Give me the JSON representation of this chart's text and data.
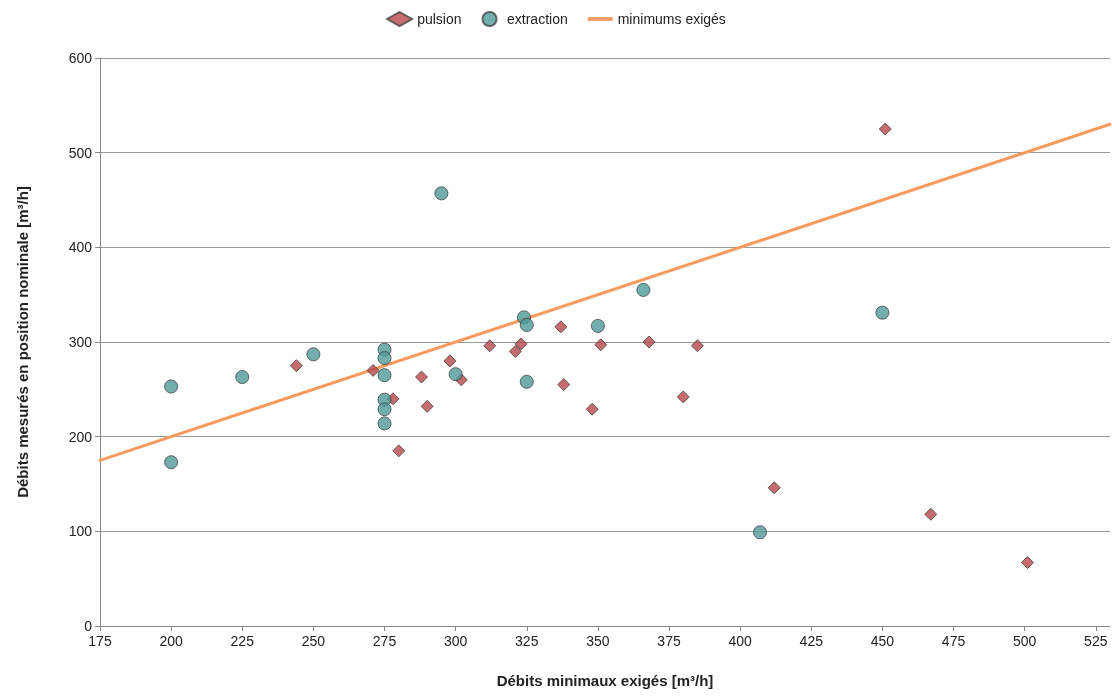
{
  "chart_data": {
    "type": "scatter",
    "xlabel": "Débits minimaux exigés [m³/h]",
    "ylabel": "Débits mesurés en position nominale [m³/h]",
    "xlim": [
      175,
      530
    ],
    "xticks": [
      175,
      200,
      225,
      250,
      275,
      300,
      325,
      350,
      375,
      400,
      425,
      450,
      475,
      500,
      525
    ],
    "ylim": [
      0,
      600
    ],
    "yticks": [
      0,
      100,
      200,
      300,
      400,
      500,
      600
    ],
    "grid": "y",
    "legend": "top",
    "series": [
      {
        "name": "pulsion",
        "color": "#b8474a",
        "marker": "diamond",
        "x": [
          244,
          271,
          278,
          280,
          288,
          290,
          298,
          302,
          312,
          321,
          323,
          337,
          338,
          348,
          351,
          368,
          380,
          385,
          412,
          451,
          467,
          501
        ],
        "values": [
          275,
          270,
          240,
          185,
          263,
          232,
          280,
          260,
          296,
          290,
          298,
          316,
          255,
          229,
          297,
          300,
          242,
          296,
          146,
          525,
          118,
          67
        ]
      },
      {
        "name": "extraction",
        "color": "#4f9a9a",
        "marker": "circle",
        "x": [
          200,
          200,
          225,
          250,
          275,
          275,
          275,
          275,
          275,
          275,
          295,
          300,
          324,
          325,
          325,
          350,
          366,
          407,
          450
        ],
        "values": [
          253,
          173,
          263,
          287,
          292,
          283,
          265,
          239,
          229,
          214,
          457,
          266,
          326,
          318,
          258,
          317,
          355,
          99,
          331
        ]
      },
      {
        "name": "minimums exigés",
        "type": "line",
        "color": "#f79a5e",
        "marker": "none",
        "line_style": "solid",
        "x": [
          175,
          530
        ],
        "values": [
          175,
          530
        ]
      }
    ]
  }
}
